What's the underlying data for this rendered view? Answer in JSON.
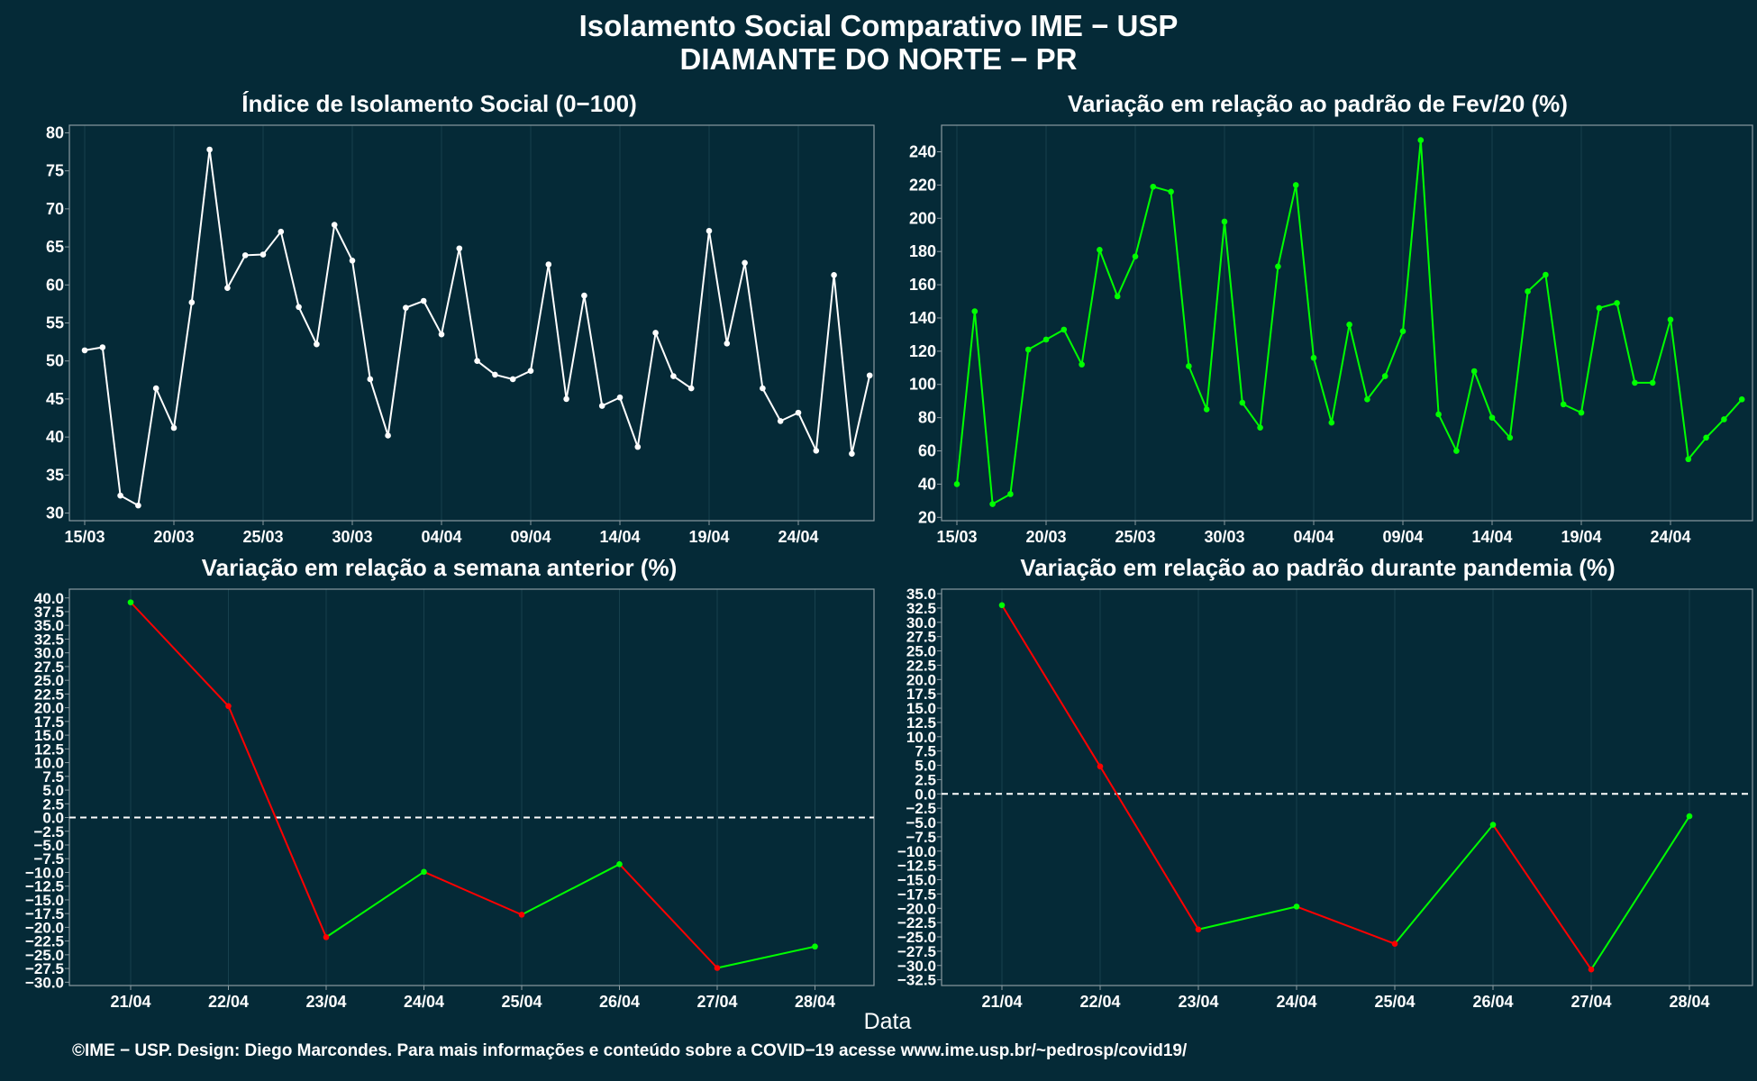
{
  "title_line1": "Isolamento Social Comparativo IME − USP",
  "title_line2": "DIAMANTE DO NORTE − PR",
  "x_axis_label": "Data",
  "footer": "©IME − USP. Design: Diego Marcondes. Para mais informações e conteúdo sobre a COVID−19 acesse www.ime.usp.br/~pedrosp/covid19/",
  "colors": {
    "background": "#052a37",
    "white_series": "#ffffff",
    "green_series": "#00ff00",
    "red_series": "#ff0000",
    "grid": "#17404d",
    "frame": "#8a9aa0"
  },
  "chart_data": [
    {
      "id": "isolation-index",
      "type": "line",
      "title": "Índice de Isolamento Social (0−100)",
      "x": [
        "15/03",
        "16/03",
        "17/03",
        "18/03",
        "19/03",
        "20/03",
        "21/03",
        "22/03",
        "23/03",
        "24/03",
        "25/03",
        "26/03",
        "27/03",
        "28/03",
        "29/03",
        "30/03",
        "31/03",
        "01/04",
        "02/04",
        "03/04",
        "04/04",
        "05/04",
        "06/04",
        "07/04",
        "08/04",
        "09/04",
        "10/04",
        "11/04",
        "12/04",
        "13/04",
        "14/04",
        "15/04",
        "16/04",
        "17/04",
        "18/04",
        "19/04",
        "20/04",
        "21/04",
        "22/04",
        "23/04",
        "24/04",
        "25/04",
        "26/04",
        "27/04",
        "28/04"
      ],
      "series": [
        {
          "values": [
            51.4,
            51.8,
            32.3,
            31.0,
            46.4,
            41.2,
            57.7,
            77.8,
            59.6,
            63.9,
            64.0,
            67.0,
            57.1,
            52.2,
            67.9,
            63.2,
            47.6,
            40.2,
            57.0,
            57.9,
            53.5,
            64.8,
            50.0,
            48.2,
            47.6,
            48.7,
            62.7,
            45.0,
            58.6,
            44.1,
            45.2,
            38.7,
            53.7,
            48.0,
            46.4,
            67.1,
            52.3,
            62.9,
            46.4,
            42.1,
            43.2,
            38.2,
            61.3,
            37.8,
            48.1
          ]
        }
      ],
      "xticks": [
        "15/03",
        "20/03",
        "25/03",
        "30/03",
        "04/04",
        "09/04",
        "14/04",
        "19/04",
        "24/04"
      ],
      "yticks": [
        30,
        35,
        40,
        45,
        50,
        55,
        60,
        65,
        70,
        75,
        80
      ],
      "ylim": [
        29,
        81
      ]
    },
    {
      "id": "variation-feb",
      "type": "line",
      "title": "Variação em relação ao padrão de Fev/20 (%)",
      "x": [
        "15/03",
        "16/03",
        "17/03",
        "18/03",
        "19/03",
        "20/03",
        "21/03",
        "22/03",
        "23/03",
        "24/03",
        "25/03",
        "26/03",
        "27/03",
        "28/03",
        "29/03",
        "30/03",
        "31/03",
        "01/04",
        "02/04",
        "03/04",
        "04/04",
        "05/04",
        "06/04",
        "07/04",
        "08/04",
        "09/04",
        "10/04",
        "11/04",
        "12/04",
        "13/04",
        "14/04",
        "15/04",
        "16/04",
        "17/04",
        "18/04",
        "19/04",
        "20/04",
        "21/04",
        "22/04",
        "23/04",
        "24/04",
        "25/04",
        "26/04",
        "27/04",
        "28/04"
      ],
      "series": [
        {
          "values": [
            40,
            144,
            28,
            34,
            121,
            127,
            133,
            112,
            181,
            153,
            177,
            219,
            216,
            111,
            85,
            198,
            89,
            74,
            171,
            220,
            116,
            77,
            136,
            91,
            105,
            132,
            247,
            82,
            60,
            108,
            80,
            68,
            156,
            166,
            88,
            83,
            146,
            149,
            101,
            101,
            139,
            55,
            68,
            79,
            91
          ]
        }
      ],
      "xticks": [
        "15/03",
        "20/03",
        "25/03",
        "30/03",
        "04/04",
        "09/04",
        "14/04",
        "19/04",
        "24/04"
      ],
      "yticks": [
        20,
        40,
        60,
        80,
        100,
        120,
        140,
        160,
        180,
        200,
        220,
        240
      ],
      "ylim": [
        18,
        256
      ]
    },
    {
      "id": "variation-week",
      "type": "line",
      "title": "Variação em relação a semana anterior (%)",
      "x": [
        "21/04",
        "22/04",
        "23/04",
        "24/04",
        "25/04",
        "26/04",
        "27/04",
        "28/04"
      ],
      "series": [
        {
          "values": [
            39.2,
            20.3,
            -21.8,
            -9.9,
            -17.7,
            -8.5,
            -27.4,
            -23.5
          ]
        }
      ],
      "xticks": [
        "21/04",
        "22/04",
        "23/04",
        "24/04",
        "25/04",
        "26/04",
        "27/04",
        "28/04"
      ],
      "yticks": [
        -30,
        -27.5,
        -25,
        -22.5,
        -20,
        -17.5,
        -15,
        -12.5,
        -10,
        -7.5,
        -5,
        -2.5,
        0,
        2.5,
        5,
        7.5,
        10,
        12.5,
        15,
        17.5,
        20,
        22.5,
        25,
        27.5,
        30,
        32.5,
        35,
        37.5,
        40
      ],
      "ylim": [
        -30.6,
        41.6
      ],
      "reference_line": 0
    },
    {
      "id": "variation-pandemic",
      "type": "line",
      "title": "Variação em relação ao padrão durante pandemia (%)",
      "x": [
        "21/04",
        "22/04",
        "23/04",
        "24/04",
        "25/04",
        "26/04",
        "27/04",
        "28/04"
      ],
      "series": [
        {
          "values": [
            33.0,
            4.8,
            -23.7,
            -19.7,
            -26.2,
            -5.4,
            -30.7,
            -3.9
          ]
        }
      ],
      "xticks": [
        "21/04",
        "22/04",
        "23/04",
        "24/04",
        "25/04",
        "26/04",
        "27/04",
        "28/04"
      ],
      "yticks": [
        -32.5,
        -30,
        -27.5,
        -25,
        -22.5,
        -20,
        -17.5,
        -15,
        -12.5,
        -10,
        -7.5,
        -5,
        -2.5,
        0,
        2.5,
        5,
        7.5,
        10,
        12.5,
        15,
        17.5,
        20,
        22.5,
        25,
        27.5,
        30,
        32.5,
        35
      ],
      "ylim": [
        -33.5,
        35.8
      ],
      "reference_line": 0
    }
  ]
}
